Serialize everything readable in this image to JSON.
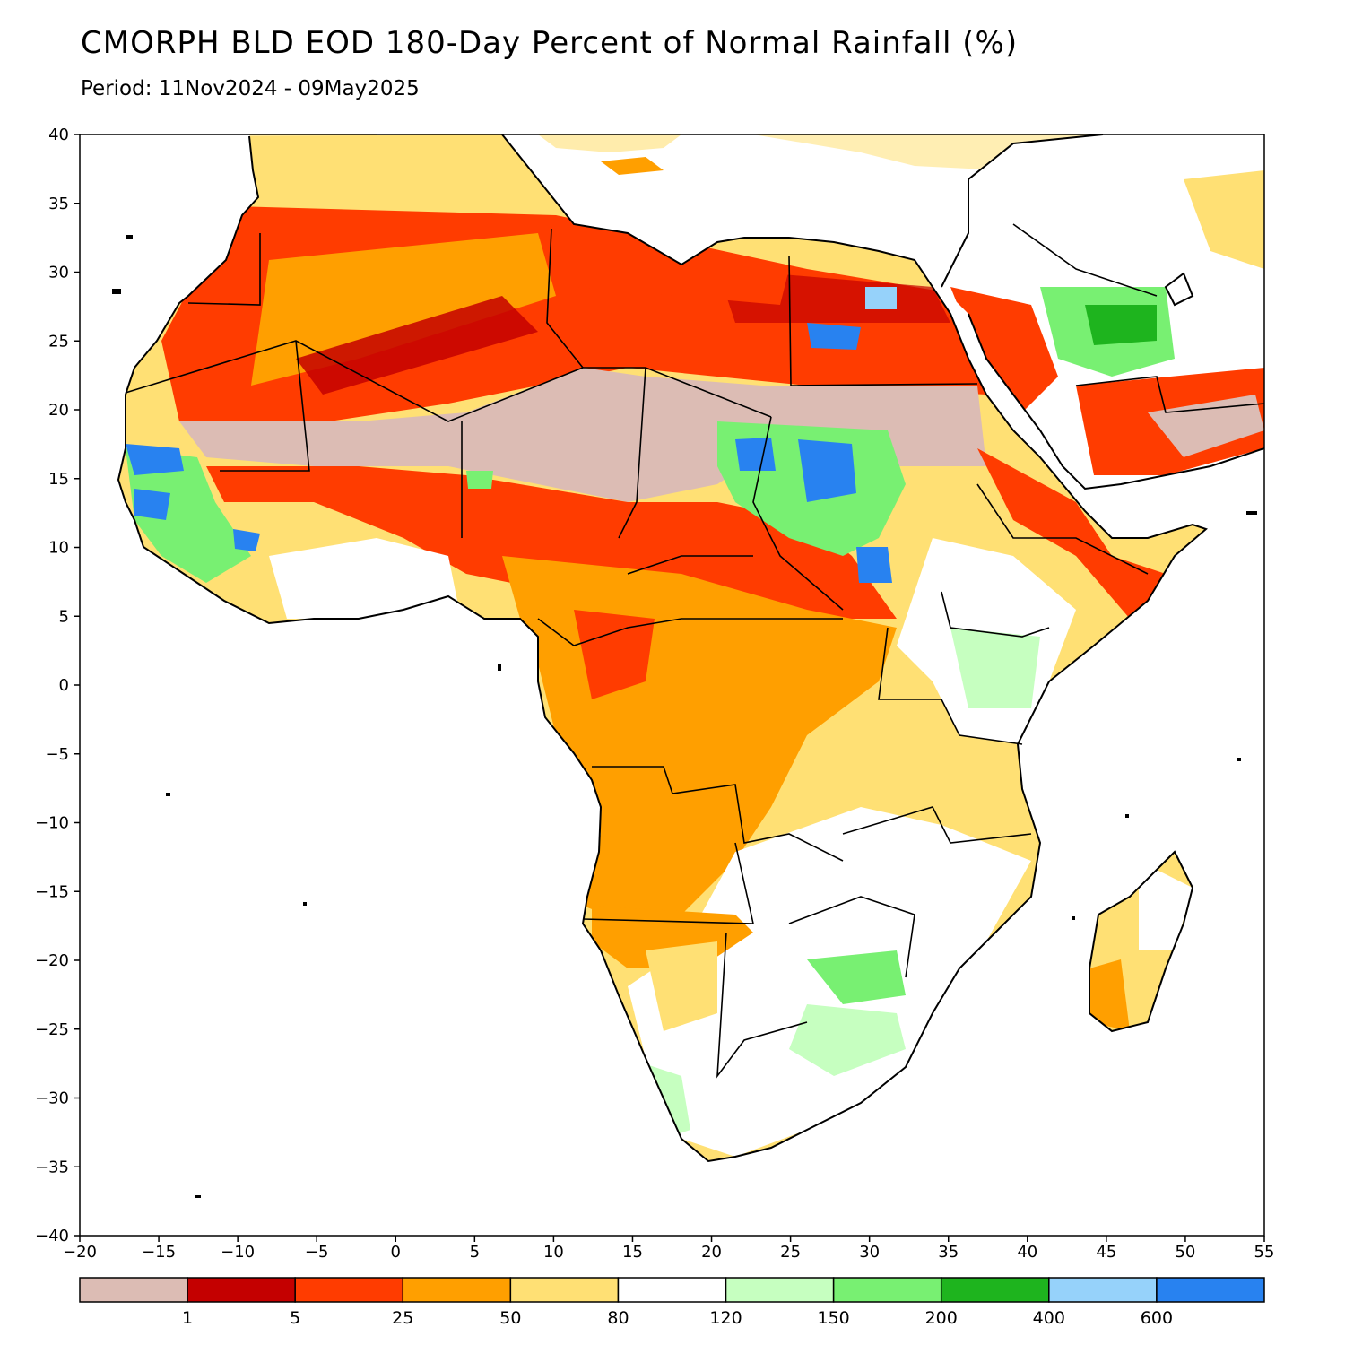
{
  "title": "CMORPH BLD EOD 180-Day Percent of Normal Rainfall (%)",
  "subtitle": "Period: 11Nov2024 - 09May2025",
  "map": {
    "lon_range": [
      -20,
      55
    ],
    "lat_range": [
      -40,
      40
    ],
    "x_ticks": [
      "-20",
      "-15",
      "-10",
      "-5",
      "0",
      "5",
      "10",
      "15",
      "20",
      "25",
      "30",
      "35",
      "40",
      "45",
      "50",
      "55"
    ],
    "y_ticks": [
      "40",
      "35",
      "30",
      "25",
      "20",
      "15",
      "10",
      "5",
      "0",
      "-5",
      "-10",
      "-15",
      "-20",
      "-25",
      "-30",
      "-35",
      "-40"
    ]
  },
  "legend": {
    "colors": [
      "#dcbcb4",
      "#c40000",
      "#ff3c00",
      "#ff9f00",
      "#ffe074",
      "#ffffff",
      "#c6ffc0",
      "#78f072",
      "#1eb41e",
      "#96d2fa",
      "#2882f0"
    ],
    "labels": [
      "1",
      "5",
      "25",
      "50",
      "80",
      "120",
      "150",
      "200",
      "400",
      "600"
    ]
  }
}
